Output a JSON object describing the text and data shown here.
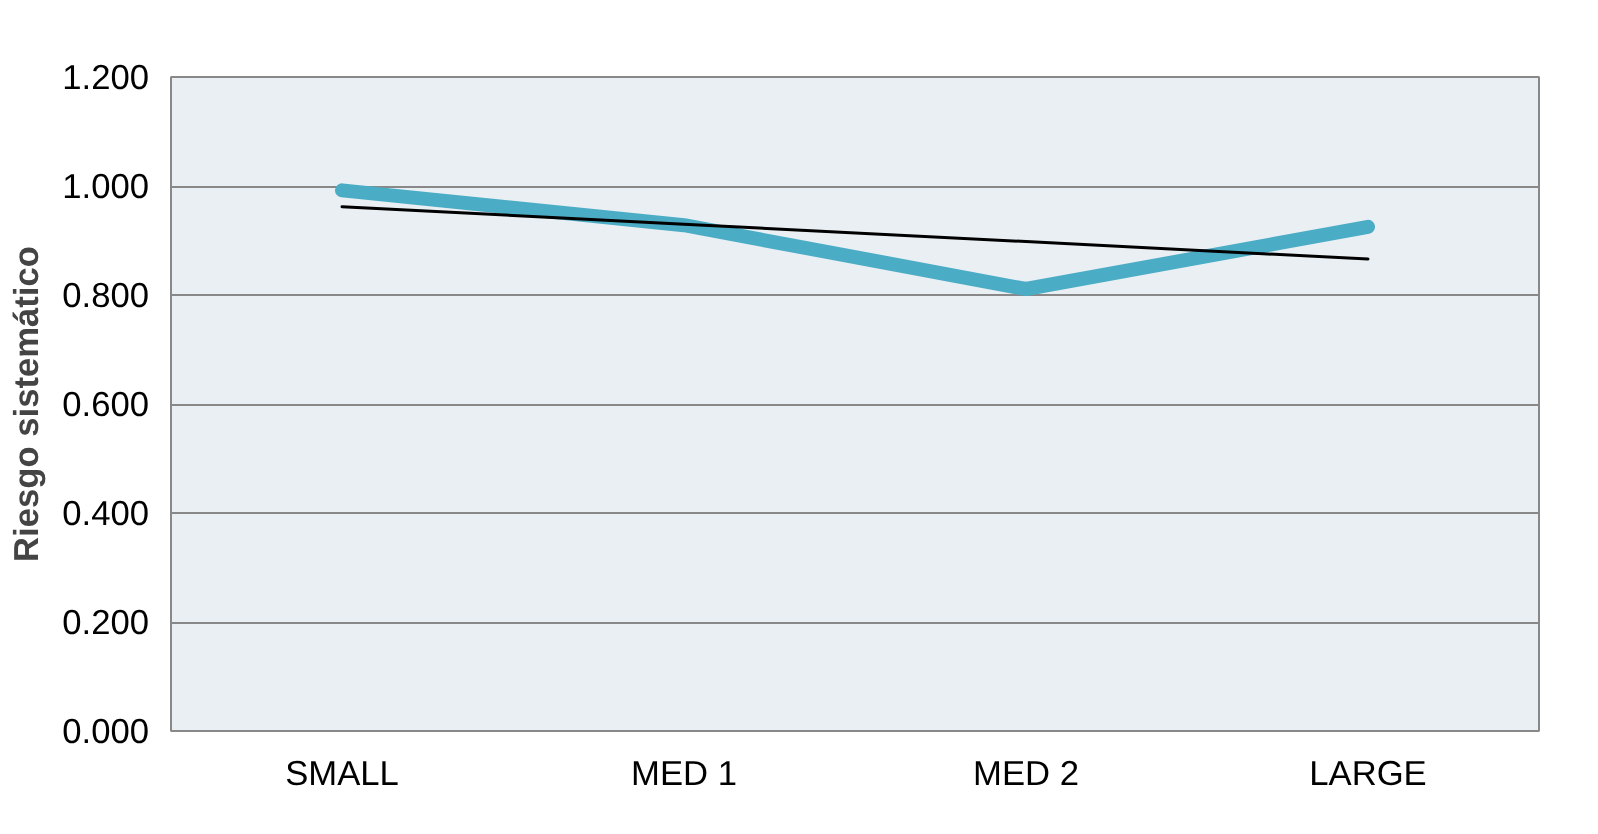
{
  "chart_data": {
    "type": "line",
    "ylabel": "Riesgo sistemático",
    "categories": [
      "SMALL",
      "MED 1",
      "MED 2",
      "LARGE"
    ],
    "series": [
      {
        "color": "#4bacc6",
        "values": [
          0.992,
          0.928,
          0.811,
          0.925
        ]
      },
      {
        "type": "line",
        "color": "#000000",
        "values": [
          0.962,
          0.93,
          0.898,
          0.866
        ]
      }
    ],
    "ylim": [
      0,
      1.2
    ],
    "yticks": [
      {
        "value": 0,
        "label": "0.000"
      },
      {
        "value": 0.2,
        "label": "0.200"
      },
      {
        "value": 0.4,
        "label": "0.400"
      },
      {
        "value": 0.6,
        "label": "0.600"
      },
      {
        "value": 0.8,
        "label": "0.800"
      },
      {
        "value": 1.0,
        "label": "1.000"
      },
      {
        "value": 1.2,
        "label": "1.200"
      }
    ],
    "grid": "y",
    "marker": "none"
  }
}
